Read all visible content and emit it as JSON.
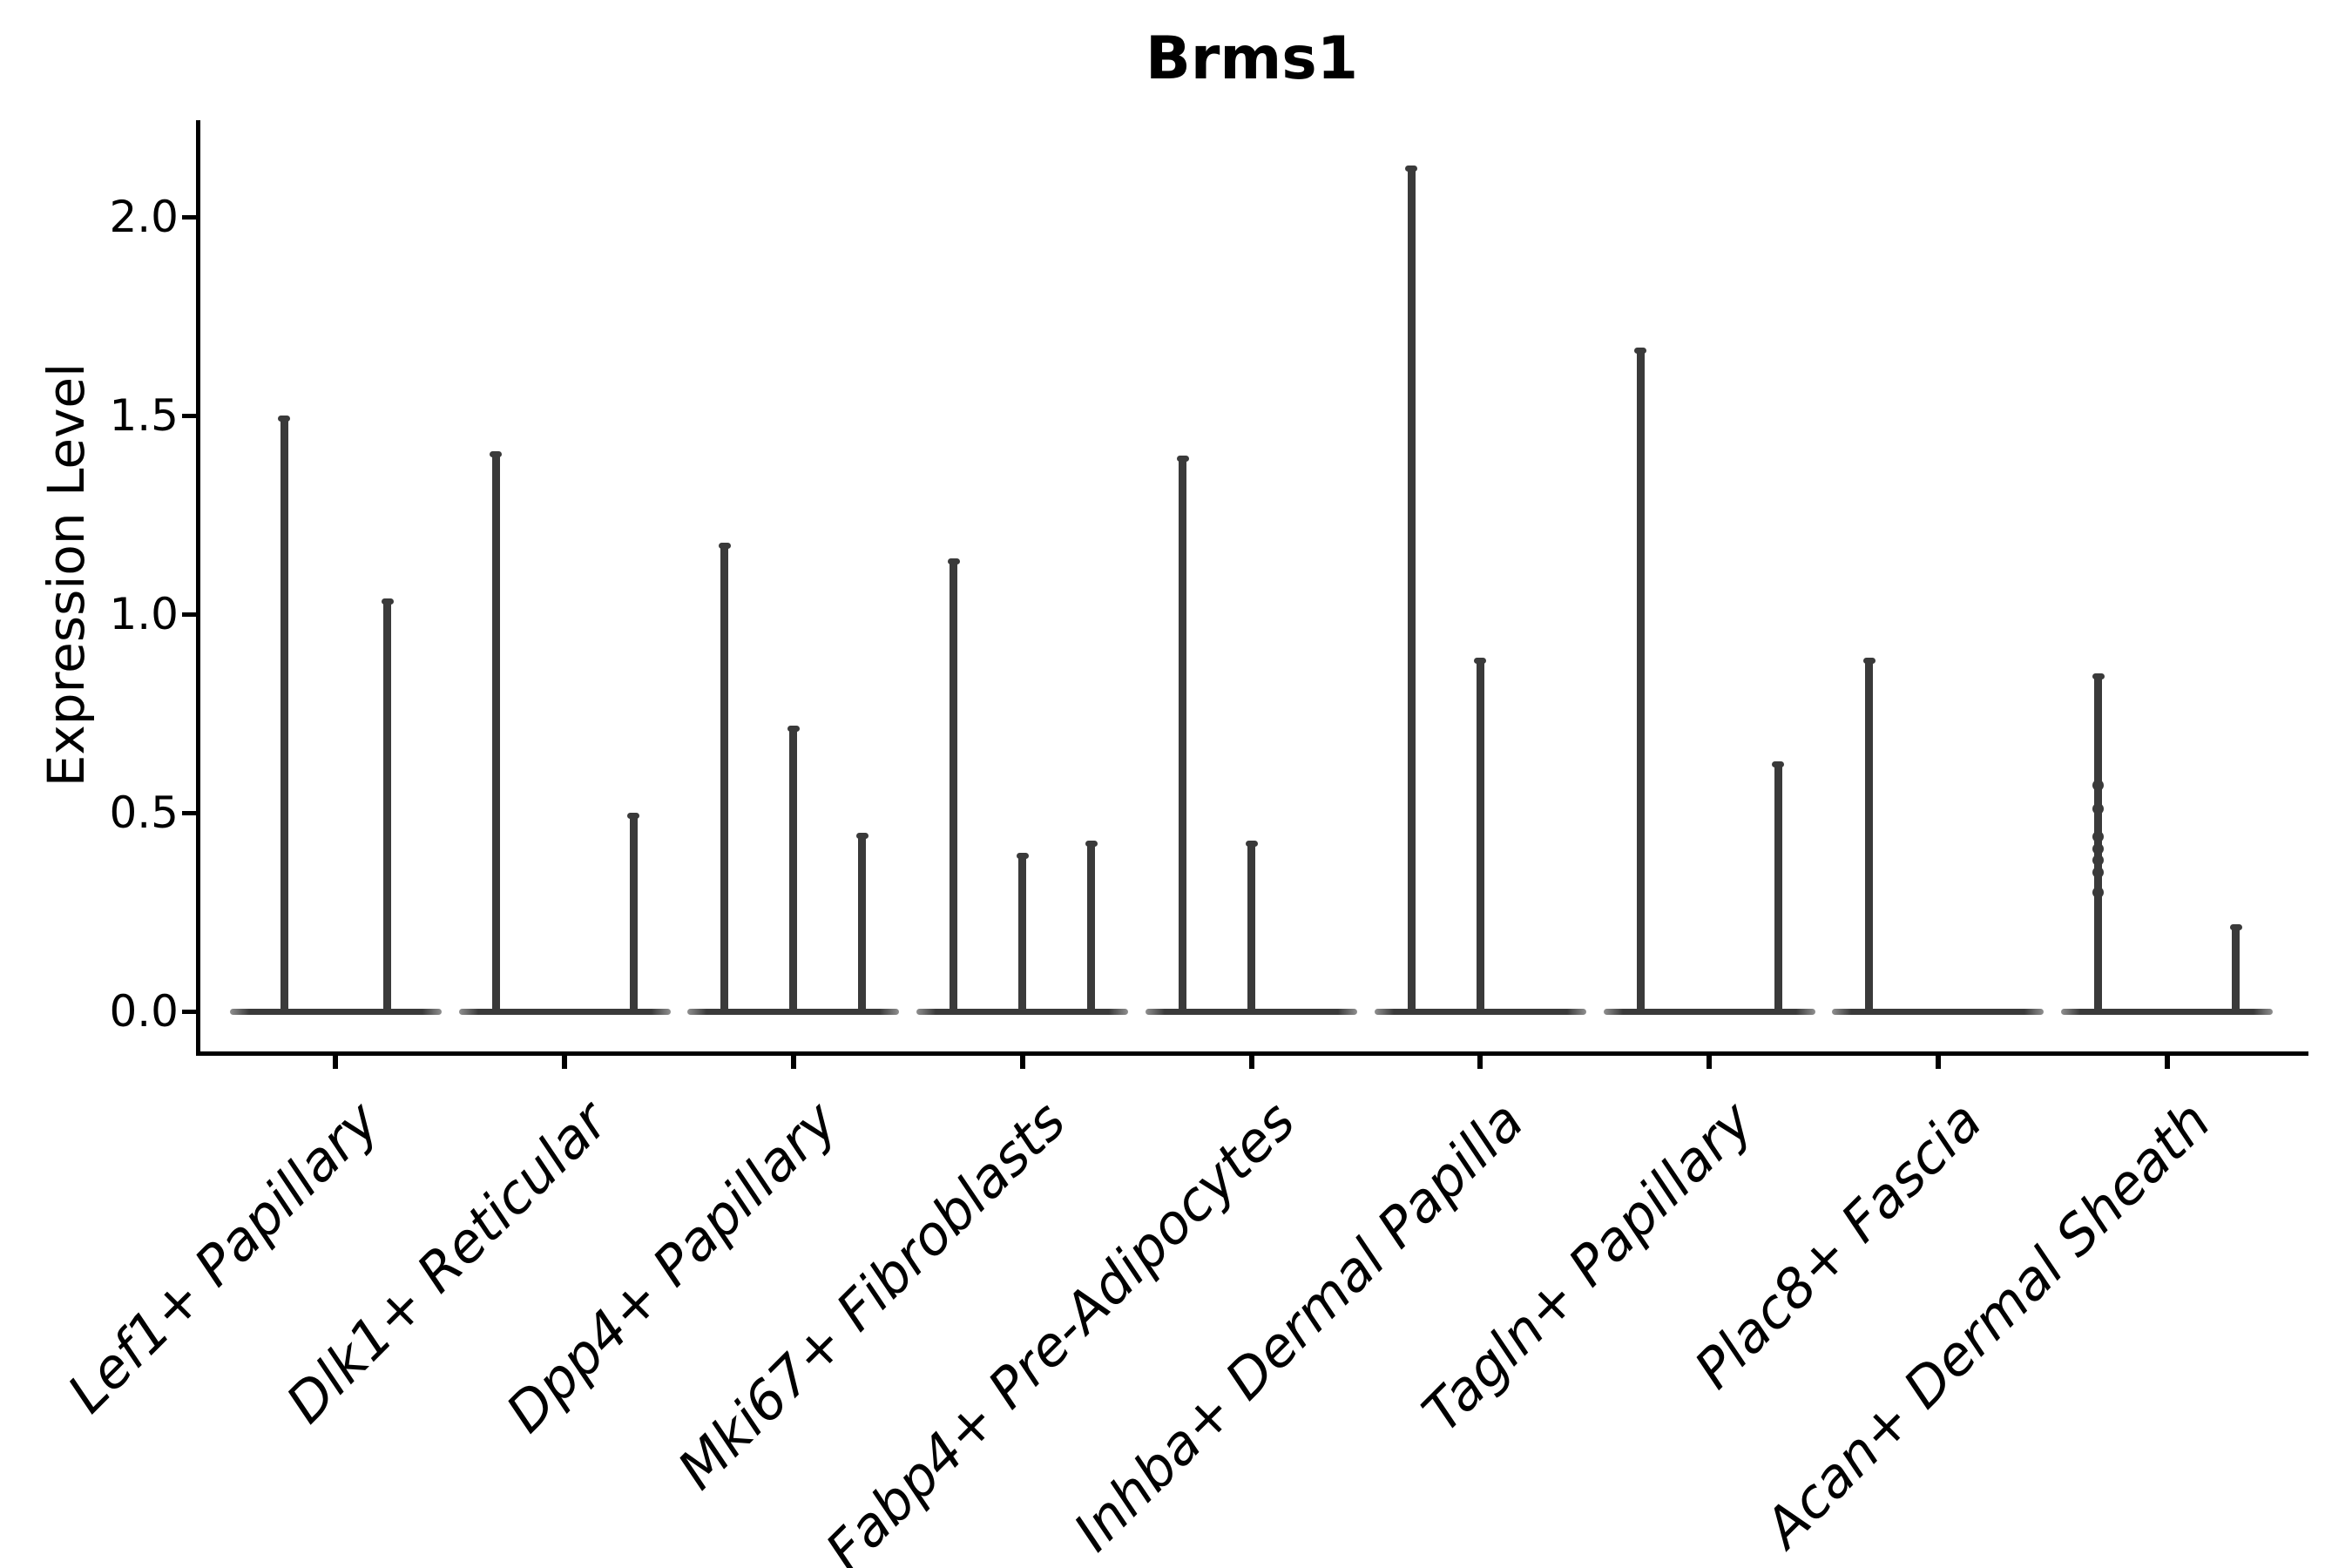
{
  "figure": {
    "title": "Brms1",
    "ylabel": "Expression Level"
  },
  "colors": {
    "violin": "#3a3a3a",
    "violin_tip_fade": "#909090",
    "axis": "#000000",
    "background": "#ffffff"
  },
  "chart_data": {
    "type": "violin",
    "title": "Brms1",
    "xlabel": "",
    "ylabel": "Expression Level",
    "ylim": [
      -0.11,
      2.24
    ],
    "yticks": [
      0.0,
      0.5,
      1.0,
      1.5,
      2.0
    ],
    "grid": false,
    "legend": null,
    "categories": [
      "Lef1+ Papillary",
      "Dlk1+ Reticular",
      "Dpp4+ Papillary",
      "Mki67+ Fibroblasts",
      "Fabp4+ Pre-Adipocytes",
      "Inhba+ Dermal Papilla",
      "Tagln+ Papillary",
      "Plac8+ Fascia",
      "Acan+ Dermal Sheath"
    ],
    "groups": [
      {
        "label": "Lef1+ Papillary",
        "violin_maxima": [
          1.5,
          1.04
        ]
      },
      {
        "label": "Dlk1+ Reticular",
        "violin_maxima": [
          1.41,
          0.0,
          0.5
        ]
      },
      {
        "label": "Dpp4+ Papillary",
        "violin_maxima": [
          1.18,
          0.72,
          0.45
        ]
      },
      {
        "label": "Mki67+ Fibroblasts",
        "violin_maxima": [
          1.14,
          0.4,
          0.43
        ]
      },
      {
        "label": "Fabp4+ Pre-Adipocytes",
        "violin_maxima": [
          1.4,
          0.43,
          0.0
        ]
      },
      {
        "label": "Inhba+ Dermal Papilla",
        "violin_maxima": [
          2.13,
          0.89,
          0.0
        ]
      },
      {
        "label": "Tagln+ Papillary",
        "violin_maxima": [
          1.67,
          0.0,
          0.63
        ]
      },
      {
        "label": "Plac8+ Fascia",
        "violin_maxima": [
          0.89,
          0.0,
          0.0
        ]
      },
      {
        "label": "Acan+ Dermal Sheath",
        "violin_maxima": [
          0.85,
          0.0,
          0.22
        ],
        "dot_violin": 0,
        "dot_values": [
          0.57,
          0.51,
          0.44,
          0.41,
          0.38,
          0.35,
          0.3
        ]
      }
    ]
  }
}
